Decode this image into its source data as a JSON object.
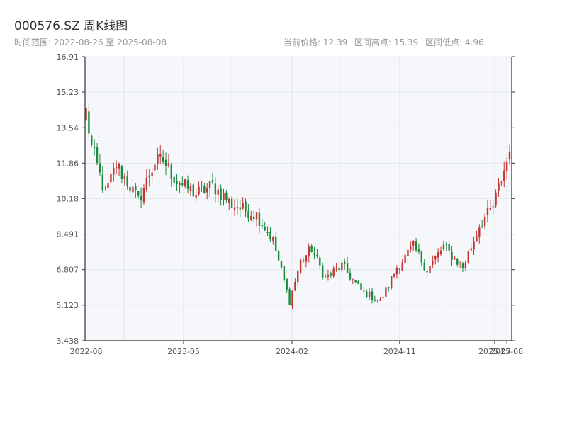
{
  "header": {
    "title": "000576.SZ 周K线图",
    "subtitle": "时间范围: 2022-08-26 至 2025-08-08",
    "stat_current": "当前价格: 12.39",
    "stat_high": "区间高点: 15.39",
    "stat_low": "区间低点: 4.96"
  },
  "colors": {
    "up": "#c23531",
    "down": "#1a8a3c",
    "plot_bg": "#f5f7fa",
    "grid": "#e4e7ec",
    "axis": "#333333"
  },
  "chart_data": {
    "type": "candlestick",
    "title": "000576.SZ 周K线图",
    "xlabel": "",
    "ylabel": "",
    "grid": true,
    "ylim": [
      3.438,
      16.91
    ],
    "y_ticks": [
      "3.438",
      "5.123",
      "6.807",
      "8.491",
      "10.18",
      "11.86",
      "13.54",
      "15.23",
      "16.91"
    ],
    "x_ticks": [
      "2022-08",
      "2023-05",
      "2024-02",
      "2024-11",
      "2025-07",
      "2025-08"
    ],
    "period": "weekly",
    "key_points": [
      {
        "date": "2022-08-26",
        "close": 14.3
      },
      {
        "date": "2022-09-09",
        "close": 12.6
      },
      {
        "date": "2022-10-14",
        "close": 10.4
      },
      {
        "date": "2022-11-11",
        "close": 11.8
      },
      {
        "date": "2023-01-06",
        "close": 10.1
      },
      {
        "date": "2023-02-17",
        "close": 11.9
      },
      {
        "date": "2023-03-10",
        "close": 12.0
      },
      {
        "date": "2023-04-14",
        "close": 11.0
      },
      {
        "date": "2023-06-02",
        "close": 10.4
      },
      {
        "date": "2023-07-14",
        "close": 10.8
      },
      {
        "date": "2023-09-01",
        "close": 9.9
      },
      {
        "date": "2023-11-03",
        "close": 9.4
      },
      {
        "date": "2023-12-15",
        "close": 8.2
      },
      {
        "date": "2024-01-26",
        "close": 5.3
      },
      {
        "date": "2024-02-23",
        "close": 7.2
      },
      {
        "date": "2024-03-22",
        "close": 7.8
      },
      {
        "date": "2024-04-26",
        "close": 6.4
      },
      {
        "date": "2024-06-07",
        "close": 7.0
      },
      {
        "date": "2024-07-26",
        "close": 5.8
      },
      {
        "date": "2024-09-13",
        "close": 5.3
      },
      {
        "date": "2024-10-25",
        "close": 6.9
      },
      {
        "date": "2024-12-06",
        "close": 7.9
      },
      {
        "date": "2025-01-10",
        "close": 6.8
      },
      {
        "date": "2025-02-21",
        "close": 7.9
      },
      {
        "date": "2025-04-11",
        "close": 6.9
      },
      {
        "date": "2025-05-23",
        "close": 8.9
      },
      {
        "date": "2025-06-27",
        "close": 9.8
      },
      {
        "date": "2025-08-08",
        "close": 12.39
      }
    ]
  }
}
